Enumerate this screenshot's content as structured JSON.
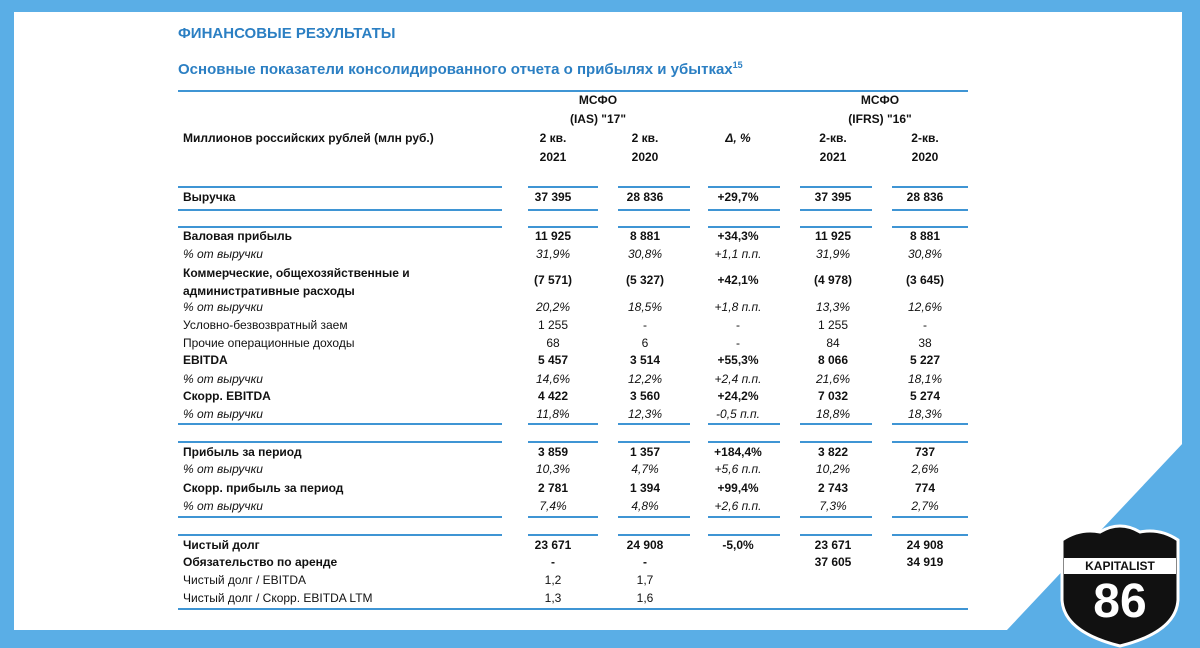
{
  "header": {
    "title": "ФИНАНСОВЫЕ РЕЗУЛЬТАТЫ",
    "subtitle": "Основные показатели консолидированного отчета о прибылях и убытках",
    "footnote": "15"
  },
  "table": {
    "unit_label": "Миллионов российских рублей (млн руб.)",
    "groups": [
      {
        "lines": [
          "МСФО",
          "(IAS) \"17\""
        ]
      },
      {
        "lines": [
          "МСФО",
          "(IFRS) \"16\""
        ]
      }
    ],
    "columns": [
      [
        "2 кв.",
        "2021"
      ],
      [
        "2 кв.",
        "2020"
      ],
      [
        "Δ, %"
      ],
      [
        "2-кв.",
        "2021"
      ],
      [
        "2-кв.",
        "2020"
      ]
    ],
    "rows": [
      {
        "label": "Выручка",
        "style": "bold",
        "values": [
          "37 395",
          "28 836",
          "+29,7%",
          "37 395",
          "28 836"
        ]
      },
      {
        "label": "Валовая прибыль",
        "style": "bold",
        "values": [
          "11 925",
          "8 881",
          "+34,3%",
          "11 925",
          "8 881"
        ]
      },
      {
        "label": "% от выручки",
        "style": "italic",
        "values": [
          "31,9%",
          "30,8%",
          "+1,1 п.п.",
          "31,9%",
          "30,8%"
        ]
      },
      {
        "label": "Коммерческие, общехозяйственные и административные расходы",
        "style": "bold",
        "values": [
          "(7 571)",
          "(5 327)",
          "+42,1%",
          "(4 978)",
          "(3 645)"
        ]
      },
      {
        "label": "% от выручки",
        "style": "italic",
        "values": [
          "20,2%",
          "18,5%",
          "+1,8 п.п.",
          "13,3%",
          "12,6%"
        ]
      },
      {
        "label": "Условно-безвозвратный заем",
        "style": "normal",
        "values": [
          "1 255",
          "-",
          "-",
          "1 255",
          "-"
        ]
      },
      {
        "label": "Прочие операционные доходы",
        "style": "normal",
        "values": [
          "68",
          "6",
          "-",
          "84",
          "38"
        ]
      },
      {
        "label": "EBITDA",
        "style": "bold",
        "values": [
          "5 457",
          "3 514",
          "+55,3%",
          "8 066",
          "5 227"
        ]
      },
      {
        "label": "% от выручки",
        "style": "italic",
        "values": [
          "14,6%",
          "12,2%",
          "+2,4 п.п.",
          "21,6%",
          "18,1%"
        ]
      },
      {
        "label": "Скорр. EBITDA",
        "style": "bold",
        "values": [
          "4 422",
          "3 560",
          "+24,2%",
          "7 032",
          "5 274"
        ]
      },
      {
        "label": "% от выручки",
        "style": "italic",
        "values": [
          "11,8%",
          "12,3%",
          "-0,5 п.п.",
          "18,8%",
          "18,3%"
        ]
      },
      {
        "label": "Прибыль за период",
        "style": "bold",
        "values": [
          "3 859",
          "1 357",
          "+184,4%",
          "3 822",
          "737"
        ]
      },
      {
        "label": "% от выручки",
        "style": "italic",
        "values": [
          "10,3%",
          "4,7%",
          "+5,6 п.п.",
          "10,2%",
          "2,6%"
        ]
      },
      {
        "label": "Скорр. прибыль за период",
        "style": "bold",
        "values": [
          "2 781",
          "1 394",
          "+99,4%",
          "2 743",
          "774"
        ]
      },
      {
        "label": "% от выручки",
        "style": "italic",
        "values": [
          "7,4%",
          "4,8%",
          "+2,6 п.п.",
          "7,3%",
          "2,7%"
        ]
      },
      {
        "label": "Чистый долг",
        "style": "bold",
        "values": [
          "23 671",
          "24 908",
          "-5,0%",
          "23 671",
          "24 908"
        ]
      },
      {
        "label": "Обязательство по аренде",
        "style": "bold",
        "values": [
          "-",
          "-",
          null,
          "37 605",
          "34 919"
        ]
      },
      {
        "label": "Чистый долг / EBITDA",
        "style": "normal",
        "values": [
          "1,2",
          "1,7",
          null,
          null,
          null
        ]
      },
      {
        "label": "Чистый долг / Скорр. EBITDA LTM",
        "style": "normal",
        "values": [
          "1,3",
          "1,6",
          null,
          null,
          null
        ]
      }
    ]
  },
  "logo": {
    "name": "KAPITALIST",
    "number": "86"
  }
}
